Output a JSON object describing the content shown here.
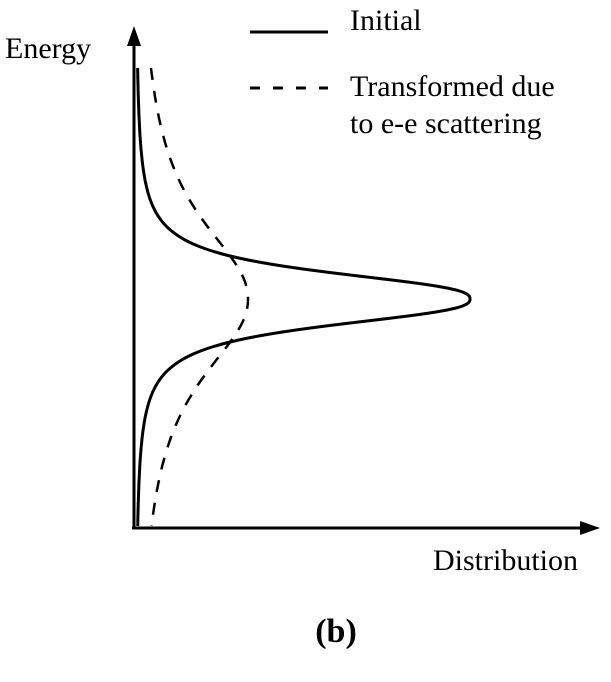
{
  "figure": {
    "type": "energy-distribution-diagram",
    "panel_label": "(b)",
    "axes": {
      "y_label": "Energy",
      "x_label": "Distribution"
    },
    "legend": {
      "position": "top-right",
      "items": [
        {
          "name": "Initial",
          "style": "solid"
        },
        {
          "name_line1": "Transformed due",
          "name_line2": "to e-e scattering",
          "style": "dashed"
        }
      ]
    },
    "curves": [
      {
        "name": "Initial",
        "shape": "sharp peak",
        "style": "solid"
      },
      {
        "name": "Transformed due to e-e scattering",
        "shape": "broad peak",
        "style": "dashed"
      }
    ],
    "colors": {
      "ink": "#000000",
      "background": "#ffffff"
    }
  }
}
